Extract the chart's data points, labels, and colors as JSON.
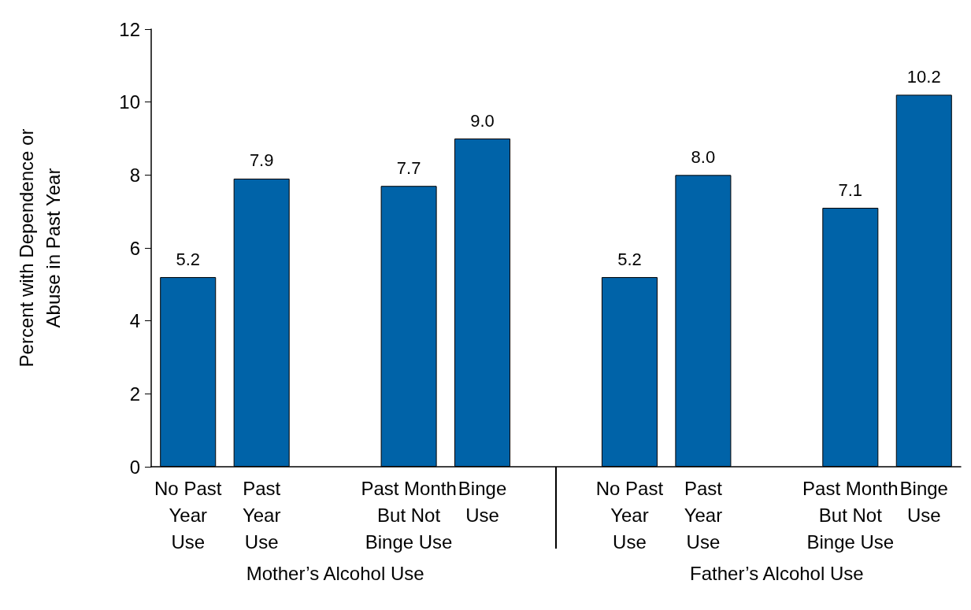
{
  "chart_data": {
    "type": "bar",
    "categories": [
      "No Past\nYear\nUse",
      "Past\nYear\nUse",
      null,
      "Past Month\nBut Not\nBinge Use",
      "Binge\nUse",
      null,
      "No Past\nYear\nUse",
      "Past\nYear\nUse",
      null,
      "Past Month\nBut Not\nBinge Use",
      "Binge\nUse"
    ],
    "values": [
      5.2,
      7.9,
      null,
      7.7,
      9.0,
      null,
      5.2,
      8.0,
      null,
      7.1,
      10.2
    ],
    "value_labels": [
      "5.2",
      "7.9",
      null,
      "7.7",
      "9.0",
      null,
      "5.2",
      "8.0",
      null,
      "7.1",
      "10.2"
    ],
    "color": "#0063a8",
    "ylabel": "Percent with Dependence or\nAbuse in Past Year",
    "ylim": [
      0,
      12
    ],
    "yticks": [
      0,
      2,
      4,
      6,
      8,
      10,
      12
    ],
    "annotations": [
      "Mother’s Alcohol Use",
      "Father’s Alcohol Use"
    ]
  }
}
